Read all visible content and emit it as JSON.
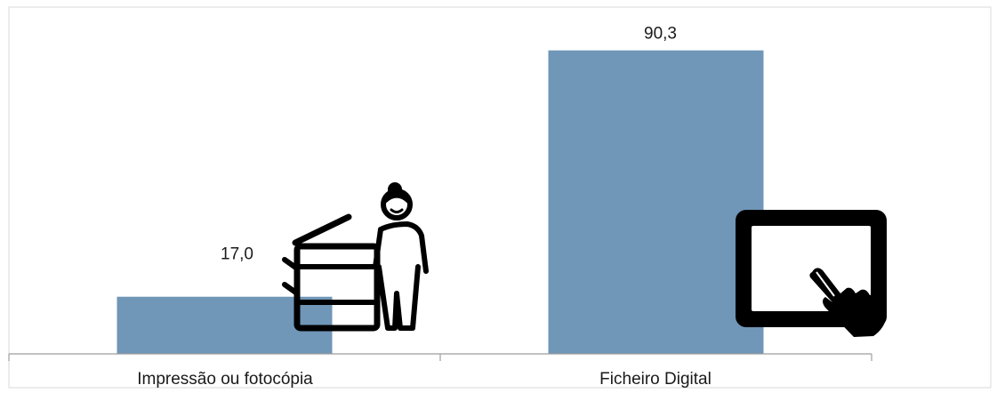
{
  "chart_data": {
    "type": "bar",
    "categories": [
      "Impressão ou fotocópia",
      "Ficheiro Digital"
    ],
    "values": [
      17.0,
      90.3
    ],
    "value_labels": [
      "17,0",
      "90,3"
    ],
    "title": "",
    "xlabel": "",
    "ylabel": "",
    "ylim": [
      0,
      100
    ],
    "grid": false,
    "legend": "none",
    "bar_color": "#7096b8",
    "icons": [
      "person-at-photocopier-icon",
      "tablet-touch-icon"
    ]
  }
}
